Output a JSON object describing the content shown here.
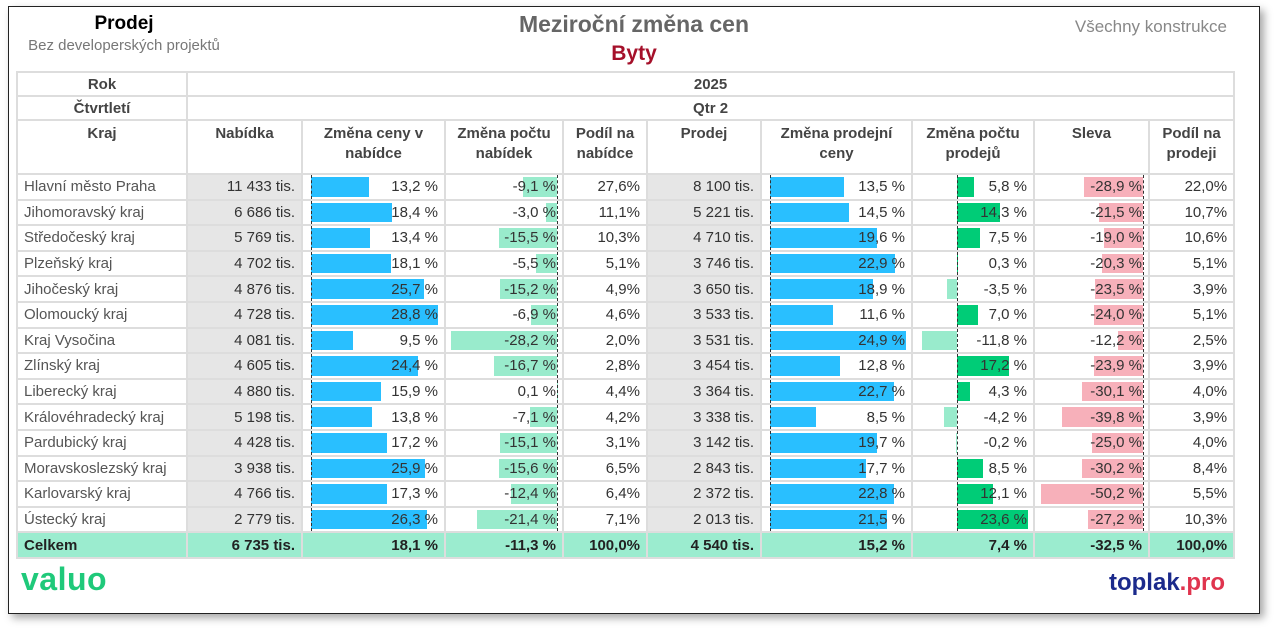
{
  "header": {
    "left_title": "Prodej",
    "left_subtitle": "Bez developerských projektů",
    "title": "Meziroční změna cen",
    "subtitle": "Byty",
    "right_label": "Všechny konstrukce"
  },
  "table": {
    "rok_label": "Rok",
    "rok_value": "2025",
    "quarter_label": "Čtvrtletí",
    "quarter_value": "Qtr 2",
    "columns": [
      "Kraj",
      "Nabídka",
      "Změna ceny v nabídce",
      "Změna počtu nabídek",
      "Podíl na nabídce",
      "Prodej",
      "Změna prodejní ceny",
      "Změna počtu prodejů",
      "Sleva",
      "Podíl na prodeji"
    ],
    "rows": [
      [
        "Hlavní město Praha",
        "11 433 tis.",
        "13,2 %",
        "-9,1 %",
        "27,6%",
        "8 100 tis.",
        "13,5 %",
        "5,8 %",
        "-28,9 %",
        "22,0%"
      ],
      [
        "Jihomoravský kraj",
        "6 686 tis.",
        "18,4 %",
        "-3,0 %",
        "11,1%",
        "5 221 tis.",
        "14,5 %",
        "14,3 %",
        "-21,5 %",
        "10,7%"
      ],
      [
        "Středočeský kraj",
        "5 769 tis.",
        "13,4 %",
        "-15,5 %",
        "10,3%",
        "4 710 tis.",
        "19,6 %",
        "7,5 %",
        "-19,0 %",
        "10,6%"
      ],
      [
        "Plzeňský kraj",
        "4 702 tis.",
        "18,1 %",
        "-5,5 %",
        "5,1%",
        "3 746 tis.",
        "22,9 %",
        "0,3 %",
        "-20,3 %",
        "5,1%"
      ],
      [
        "Jihočeský kraj",
        "4 876 tis.",
        "25,7 %",
        "-15,2 %",
        "4,9%",
        "3 650 tis.",
        "18,9 %",
        "-3,5 %",
        "-23,5 %",
        "3,9%"
      ],
      [
        "Olomoucký kraj",
        "4 728 tis.",
        "28,8 %",
        "-6,9 %",
        "4,6%",
        "3 533 tis.",
        "11,6 %",
        "7,0 %",
        "-24,0 %",
        "5,1%"
      ],
      [
        "Kraj Vysočina",
        "4 081 tis.",
        "9,5 %",
        "-28,2 %",
        "2,0%",
        "3 531 tis.",
        "24,9 %",
        "-11,8 %",
        "-12,2 %",
        "2,5%"
      ],
      [
        "Zlínský kraj",
        "4 605 tis.",
        "24,4 %",
        "-16,7 %",
        "2,8%",
        "3 454 tis.",
        "12,8 %",
        "17,2 %",
        "-23,9 %",
        "3,9%"
      ],
      [
        "Liberecký kraj",
        "4 880 tis.",
        "15,9 %",
        "0,1 %",
        "4,4%",
        "3 364 tis.",
        "22,7 %",
        "4,3 %",
        "-30,1 %",
        "4,0%"
      ],
      [
        "Královéhradecký kraj",
        "5 198 tis.",
        "13,8 %",
        "-7,1 %",
        "4,2%",
        "3 338 tis.",
        "8,5 %",
        "-4,2 %",
        "-39,8 %",
        "3,9%"
      ],
      [
        "Pardubický kraj",
        "4 428 tis.",
        "17,2 %",
        "-15,1 %",
        "3,1%",
        "3 142 tis.",
        "19,7 %",
        "-0,2 %",
        "-25,0 %",
        "4,0%"
      ],
      [
        "Moravskoslezský kraj",
        "3 938 tis.",
        "25,9 %",
        "-15,6 %",
        "6,5%",
        "2 843 tis.",
        "17,7 %",
        "8,5 %",
        "-30,2 %",
        "8,4%"
      ],
      [
        "Karlovarský kraj",
        "4 766 tis.",
        "17,3 %",
        "-12,4 %",
        "6,4%",
        "2 372 tis.",
        "22,8 %",
        "12,1 %",
        "-50,2 %",
        "5,5%"
      ],
      [
        "Ústecký kraj",
        "2 779 tis.",
        "26,3 %",
        "-21,4 %",
        "7,1%",
        "2 013 tis.",
        "21,5 %",
        "23,6 %",
        "-27,2 %",
        "10,3%"
      ]
    ],
    "total": [
      "Celkem",
      "6 735 tis.",
      "18,1 %",
      "-11,3 %",
      "100,0%",
      "4 540 tis.",
      "15,2 %",
      "7,4 %",
      "-32,5 %",
      "100,0%"
    ]
  },
  "colors": {
    "price_bar": "#29BFFF",
    "negative_count_bar": "#99EBCC",
    "positive_count_bar": "#00CC77",
    "discount_bar": "#F7B0BA",
    "total_row": "#9BECCF",
    "subtitle": "#A5102A"
  },
  "footer": {
    "left_logo": "valuo",
    "right_logo_main": "toplak",
    "right_logo_suffix": ".pro"
  }
}
